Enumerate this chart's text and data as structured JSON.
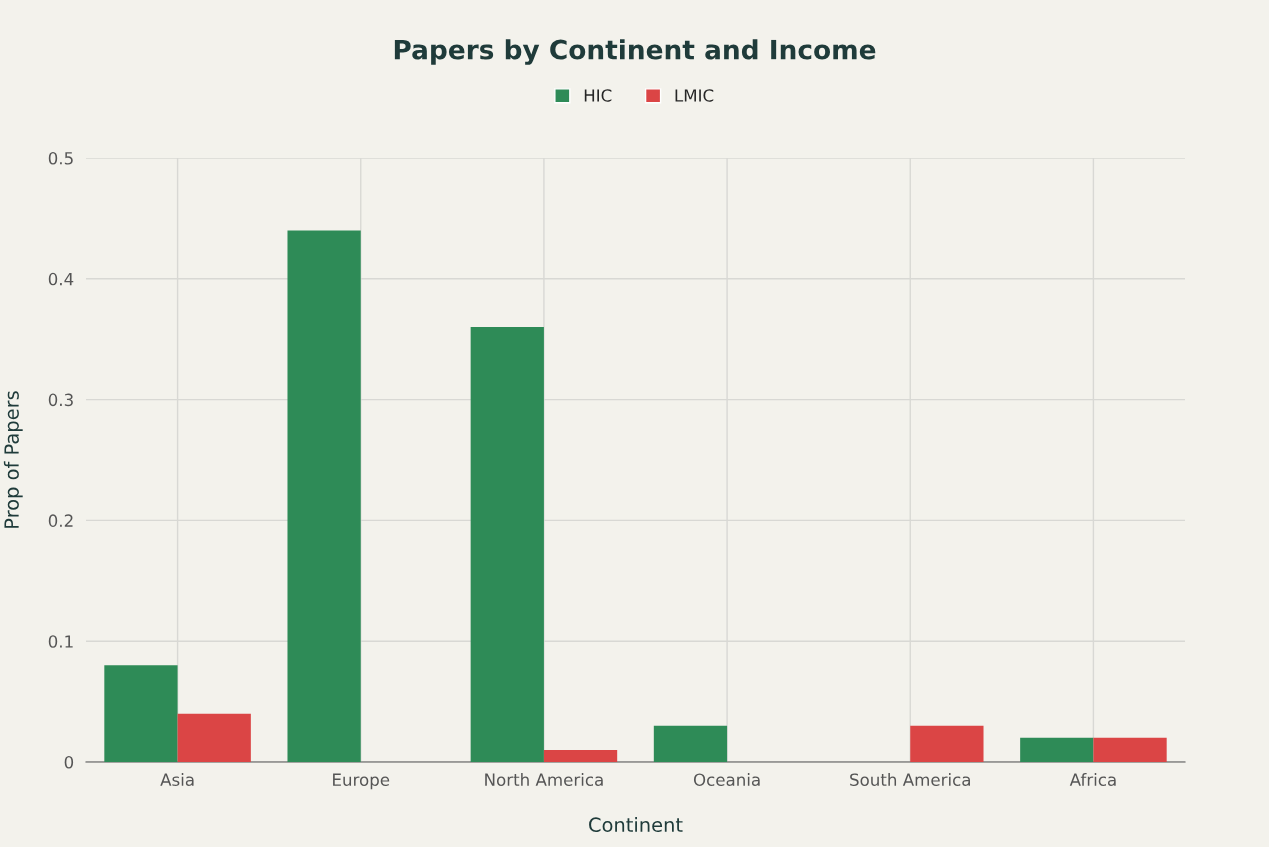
{
  "chart_data": {
    "type": "bar",
    "title": "Papers by Continent and Income",
    "xlabel": "Continent",
    "ylabel": "Prop of Papers",
    "categories": [
      "Asia",
      "Europe",
      "North America",
      "Oceania",
      "South America",
      "Africa"
    ],
    "series": [
      {
        "name": "HIC",
        "color": "#2e8b57",
        "values": [
          0.08,
          0.44,
          0.36,
          0.03,
          0,
          0.02
        ]
      },
      {
        "name": "LMIC",
        "color": "#db4545",
        "values": [
          0.04,
          0,
          0.01,
          0,
          0.03,
          0.02
        ]
      }
    ],
    "ylim": [
      0,
      0.5
    ],
    "yticks": [
      0,
      0.1,
      0.2,
      0.3,
      0.4,
      0.5
    ],
    "grid": true,
    "legend": "top"
  }
}
